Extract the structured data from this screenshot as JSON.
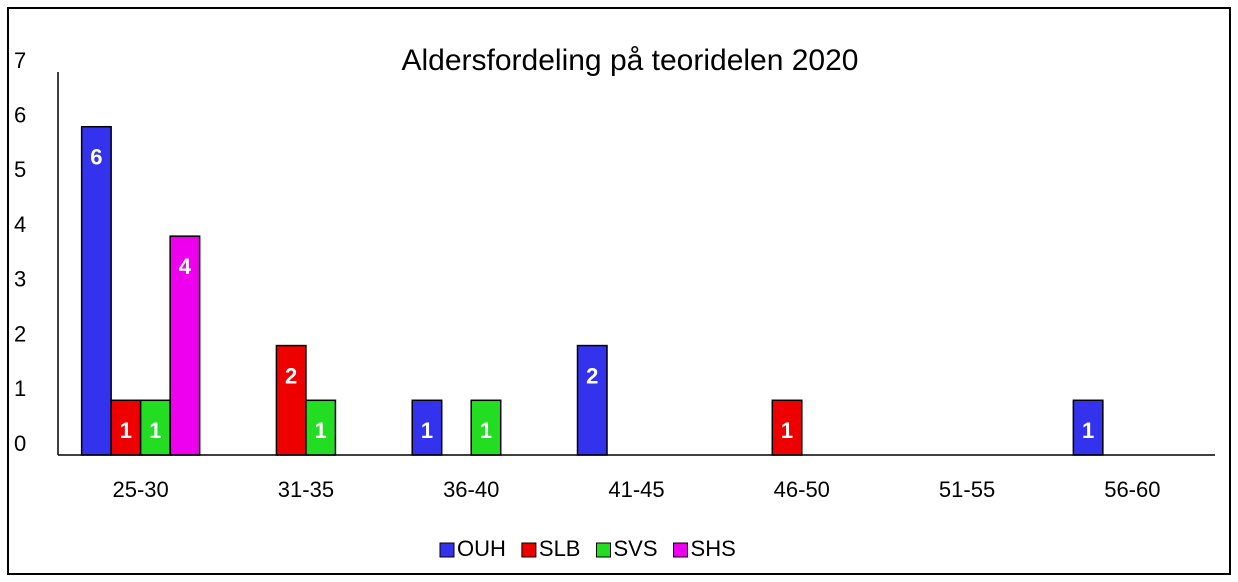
{
  "chart_data": {
    "type": "bar",
    "title": "Aldersfordeling på teoridelen 2020",
    "categories": [
      "25-30",
      "31-35",
      "36-40",
      "41-45",
      "46-50",
      "51-55",
      "56-60"
    ],
    "series": [
      {
        "name": "OUH",
        "color": "#3333ee",
        "values": [
          6,
          0,
          1,
          2,
          0,
          0,
          1
        ]
      },
      {
        "name": "SLB",
        "color": "#ee0000",
        "values": [
          1,
          2,
          0,
          0,
          1,
          0,
          0
        ]
      },
      {
        "name": "SVS",
        "color": "#22dd22",
        "values": [
          1,
          1,
          1,
          0,
          0,
          0,
          0
        ]
      },
      {
        "name": "SHS",
        "color": "#ee00ee",
        "values": [
          4,
          0,
          0,
          0,
          0,
          0,
          0
        ]
      }
    ],
    "ylim": [
      0,
      7
    ],
    "yticks": [
      0,
      1,
      2,
      3,
      4,
      5,
      6,
      7
    ],
    "legend": "bottom"
  }
}
